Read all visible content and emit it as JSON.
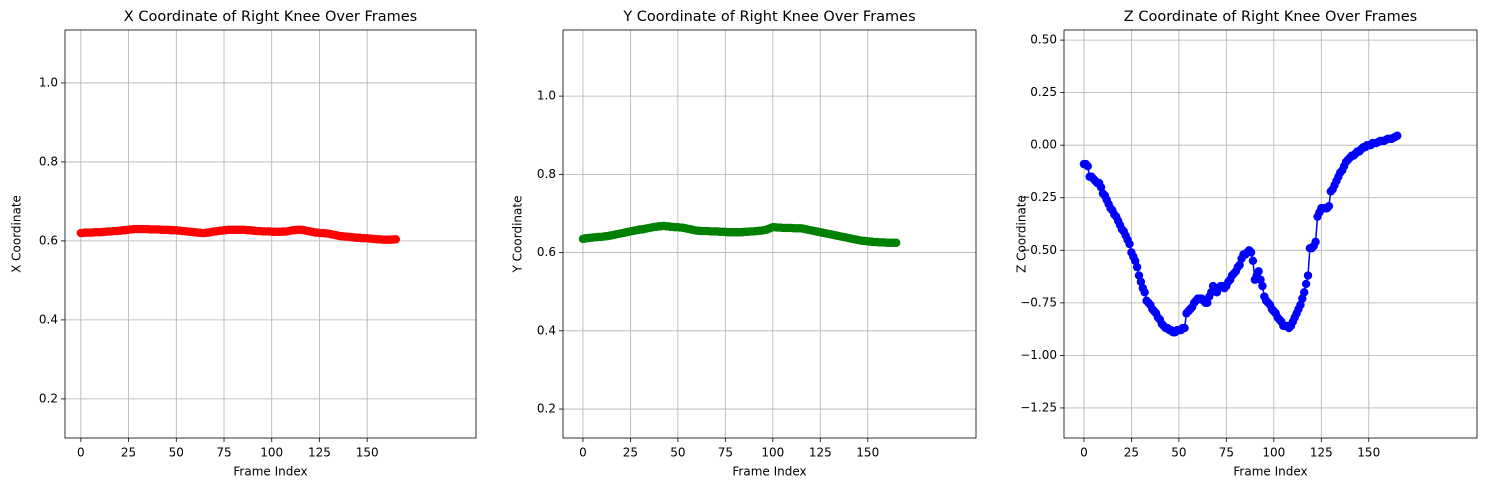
{
  "chart_data": [
    {
      "type": "line",
      "title": "X Coordinate of Right Knee Over Frames",
      "xlabel": "Frame Index",
      "ylabel": "X Coordinate",
      "color": "#ff0000",
      "marker": "o",
      "grid": true,
      "xlim": [
        -8.3,
        207
      ],
      "ylim": [
        0.101,
        1.134
      ],
      "xticks": [
        0,
        25,
        50,
        75,
        100,
        125,
        150
      ],
      "yticks": [
        0.2,
        0.4,
        0.6,
        0.8,
        {
          "value": 1.0,
          "label": "1.0"
        }
      ],
      "x": [
        0,
        1,
        2,
        3,
        4,
        5,
        6,
        7,
        8,
        9,
        10,
        11,
        12,
        13,
        14,
        15,
        16,
        17,
        18,
        19,
        20,
        21,
        22,
        23,
        24,
        25,
        26,
        27,
        28,
        29,
        30,
        31,
        32,
        33,
        34,
        35,
        36,
        37,
        38,
        39,
        40,
        41,
        42,
        43,
        44,
        45,
        46,
        47,
        48,
        49,
        50,
        51,
        52,
        53,
        54,
        55,
        56,
        57,
        58,
        59,
        60,
        61,
        62,
        63,
        64,
        65,
        66,
        67,
        68,
        69,
        70,
        71,
        72,
        73,
        74,
        75,
        76,
        77,
        78,
        79,
        80,
        81,
        82,
        83,
        84,
        85,
        86,
        87,
        88,
        89,
        90,
        91,
        92,
        93,
        94,
        95,
        96,
        97,
        98,
        99,
        100,
        101,
        102,
        103,
        104,
        105,
        106,
        107,
        108,
        109,
        110,
        111,
        112,
        113,
        114,
        115,
        116,
        117,
        118,
        119,
        120,
        121,
        122,
        123,
        124,
        125,
        126,
        127,
        128,
        129,
        130,
        131,
        132,
        133,
        134,
        135,
        136,
        137,
        138,
        139,
        140,
        141,
        142,
        143,
        144,
        145,
        146,
        147,
        148,
        149,
        150,
        151,
        152,
        153,
        154,
        155,
        156,
        157,
        158,
        159,
        160,
        161,
        162,
        163,
        164,
        165
      ],
      "values": [
        0.62,
        0.62,
        0.621,
        0.621,
        0.621,
        0.621,
        0.621,
        0.622,
        0.622,
        0.622,
        0.622,
        0.622,
        0.623,
        0.623,
        0.624,
        0.624,
        0.624,
        0.625,
        0.625,
        0.625,
        0.626,
        0.626,
        0.627,
        0.627,
        0.628,
        0.628,
        0.629,
        0.629,
        0.63,
        0.63,
        0.63,
        0.63,
        0.63,
        0.63,
        0.63,
        0.63,
        0.629,
        0.629,
        0.629,
        0.629,
        0.629,
        0.629,
        0.628,
        0.628,
        0.628,
        0.628,
        0.628,
        0.627,
        0.627,
        0.627,
        0.627,
        0.626,
        0.626,
        0.625,
        0.625,
        0.624,
        0.624,
        0.623,
        0.623,
        0.622,
        0.622,
        0.621,
        0.621,
        0.62,
        0.62,
        0.62,
        0.621,
        0.621,
        0.622,
        0.623,
        0.624,
        0.624,
        0.625,
        0.626,
        0.626,
        0.627,
        0.627,
        0.628,
        0.628,
        0.628,
        0.628,
        0.628,
        0.628,
        0.628,
        0.628,
        0.628,
        0.628,
        0.627,
        0.627,
        0.627,
        0.626,
        0.626,
        0.625,
        0.625,
        0.625,
        0.624,
        0.624,
        0.624,
        0.624,
        0.624,
        0.623,
        0.623,
        0.623,
        0.623,
        0.623,
        0.623,
        0.624,
        0.624,
        0.624,
        0.625,
        0.626,
        0.627,
        0.627,
        0.628,
        0.628,
        0.628,
        0.628,
        0.627,
        0.626,
        0.625,
        0.624,
        0.623,
        0.622,
        0.621,
        0.621,
        0.62,
        0.62,
        0.62,
        0.619,
        0.619,
        0.618,
        0.617,
        0.616,
        0.615,
        0.614,
        0.613,
        0.612,
        0.612,
        0.611,
        0.611,
        0.61,
        0.61,
        0.609,
        0.609,
        0.608,
        0.608,
        0.608,
        0.607,
        0.607,
        0.607,
        0.607,
        0.606,
        0.606,
        0.605,
        0.605,
        0.604,
        0.604,
        0.604,
        0.603,
        0.603,
        0.603,
        0.603,
        0.603,
        0.603,
        0.604,
        0.604
      ]
    },
    {
      "type": "line",
      "title": "Y Coordinate of Right Knee Over Frames",
      "xlabel": "Frame Index",
      "ylabel": "Y Coordinate",
      "color": "#008000",
      "marker": "o",
      "grid": true,
      "xlim": [
        -10.5,
        207
      ],
      "ylim": [
        0.126,
        1.169
      ],
      "xticks": [
        0,
        25,
        50,
        75,
        100,
        125,
        150
      ],
      "yticks": [
        0.2,
        0.4,
        0.6,
        0.8,
        {
          "value": 1.0,
          "label": "1.0"
        }
      ],
      "x": [
        0,
        1,
        2,
        3,
        4,
        5,
        6,
        7,
        8,
        9,
        10,
        11,
        12,
        13,
        14,
        15,
        16,
        17,
        18,
        19,
        20,
        21,
        22,
        23,
        24,
        25,
        26,
        27,
        28,
        29,
        30,
        31,
        32,
        33,
        34,
        35,
        36,
        37,
        38,
        39,
        40,
        41,
        42,
        43,
        44,
        45,
        46,
        47,
        48,
        49,
        50,
        51,
        52,
        53,
        54,
        55,
        56,
        57,
        58,
        59,
        60,
        61,
        62,
        63,
        64,
        65,
        66,
        67,
        68,
        69,
        70,
        71,
        72,
        73,
        74,
        75,
        76,
        77,
        78,
        79,
        80,
        81,
        82,
        83,
        84,
        85,
        86,
        87,
        88,
        89,
        90,
        91,
        92,
        93,
        94,
        95,
        96,
        97,
        98,
        99,
        100,
        101,
        102,
        103,
        104,
        105,
        106,
        107,
        108,
        109,
        110,
        111,
        112,
        113,
        114,
        115,
        116,
        117,
        118,
        119,
        120,
        121,
        122,
        123,
        124,
        125,
        126,
        127,
        128,
        129,
        130,
        131,
        132,
        133,
        134,
        135,
        136,
        137,
        138,
        139,
        140,
        141,
        142,
        143,
        144,
        145,
        146,
        147,
        148,
        149,
        150,
        151,
        152,
        153,
        154,
        155,
        156,
        157,
        158,
        159,
        160,
        161,
        162,
        163,
        164,
        165
      ],
      "values": [
        0.635,
        0.636,
        0.637,
        0.637,
        0.638,
        0.638,
        0.639,
        0.639,
        0.64,
        0.64,
        0.64,
        0.641,
        0.642,
        0.642,
        0.643,
        0.644,
        0.645,
        0.646,
        0.647,
        0.648,
        0.649,
        0.65,
        0.651,
        0.652,
        0.653,
        0.654,
        0.655,
        0.656,
        0.657,
        0.658,
        0.659,
        0.659,
        0.66,
        0.661,
        0.662,
        0.663,
        0.664,
        0.665,
        0.666,
        0.666,
        0.667,
        0.667,
        0.668,
        0.668,
        0.667,
        0.667,
        0.666,
        0.666,
        0.665,
        0.665,
        0.665,
        0.664,
        0.664,
        0.663,
        0.662,
        0.661,
        0.66,
        0.659,
        0.658,
        0.657,
        0.656,
        0.656,
        0.655,
        0.655,
        0.655,
        0.655,
        0.655,
        0.654,
        0.654,
        0.654,
        0.654,
        0.654,
        0.653,
        0.653,
        0.653,
        0.653,
        0.652,
        0.652,
        0.652,
        0.652,
        0.652,
        0.652,
        0.652,
        0.652,
        0.652,
        0.653,
        0.653,
        0.653,
        0.654,
        0.654,
        0.654,
        0.655,
        0.655,
        0.656,
        0.656,
        0.657,
        0.658,
        0.659,
        0.661,
        0.663,
        0.665,
        0.665,
        0.664,
        0.664,
        0.664,
        0.663,
        0.663,
        0.663,
        0.663,
        0.663,
        0.663,
        0.662,
        0.662,
        0.662,
        0.662,
        0.662,
        0.661,
        0.66,
        0.659,
        0.658,
        0.657,
        0.656,
        0.655,
        0.654,
        0.653,
        0.652,
        0.651,
        0.65,
        0.649,
        0.648,
        0.647,
        0.646,
        0.645,
        0.644,
        0.643,
        0.642,
        0.641,
        0.64,
        0.639,
        0.638,
        0.637,
        0.636,
        0.635,
        0.634,
        0.633,
        0.632,
        0.631,
        0.63,
        0.63,
        0.629,
        0.629,
        0.628,
        0.628,
        0.627,
        0.627,
        0.627,
        0.626,
        0.626,
        0.626,
        0.626,
        0.625,
        0.625,
        0.625,
        0.625,
        0.625,
        0.625
      ]
    },
    {
      "type": "line",
      "title": "Z Coordinate of Right Knee Over Frames",
      "xlabel": "Frame Index",
      "ylabel": "Z Coordinate",
      "color": "#0000ff",
      "marker": "o",
      "grid": true,
      "xlim": [
        -10.5,
        207
      ],
      "ylim": [
        -1.393,
        0.548
      ],
      "xticks": [
        0,
        25,
        50,
        75,
        100,
        125,
        150
      ],
      "yticks": [
        {
          "value": -1.25,
          "label": "−1.25"
        },
        {
          "value": -1.0,
          "label": "−1.00"
        },
        {
          "value": -0.75,
          "label": "−0.75"
        },
        {
          "value": -0.5,
          "label": "−0.50"
        },
        {
          "value": -0.25,
          "label": "−0.25"
        },
        {
          "value": 0.0,
          "label": "0.00"
        },
        {
          "value": 0.25,
          "label": "0.25"
        },
        {
          "value": 0.5,
          "label": "0.50"
        }
      ],
      "x": [
        0,
        1,
        2,
        3,
        4,
        5,
        6,
        7,
        8,
        9,
        10,
        11,
        12,
        13,
        14,
        15,
        16,
        17,
        18,
        19,
        20,
        21,
        22,
        23,
        24,
        25,
        26,
        27,
        28,
        29,
        30,
        31,
        32,
        33,
        34,
        35,
        36,
        37,
        38,
        39,
        40,
        41,
        42,
        43,
        44,
        45,
        46,
        47,
        48,
        49,
        50,
        51,
        52,
        53,
        54,
        55,
        56,
        57,
        58,
        59,
        60,
        61,
        62,
        63,
        64,
        65,
        66,
        67,
        68,
        69,
        70,
        71,
        72,
        73,
        74,
        75,
        76,
        77,
        78,
        79,
        80,
        81,
        82,
        83,
        84,
        85,
        86,
        87,
        88,
        89,
        90,
        91,
        92,
        93,
        94,
        95,
        96,
        97,
        98,
        99,
        100,
        101,
        102,
        103,
        104,
        105,
        106,
        107,
        108,
        109,
        110,
        111,
        112,
        113,
        114,
        115,
        116,
        117,
        118,
        119,
        120,
        121,
        122,
        123,
        124,
        125,
        126,
        127,
        128,
        129,
        130,
        131,
        132,
        133,
        134,
        135,
        136,
        137,
        138,
        139,
        140,
        141,
        142,
        143,
        144,
        145,
        146,
        147,
        148,
        149,
        150,
        151,
        152,
        153,
        154,
        155,
        156,
        157,
        158,
        159,
        160,
        161,
        162,
        163,
        164,
        165
      ],
      "values": [
        -0.09,
        -0.09,
        -0.1,
        -0.15,
        -0.15,
        -0.16,
        -0.17,
        -0.18,
        -0.18,
        -0.2,
        -0.23,
        -0.24,
        -0.26,
        -0.28,
        -0.3,
        -0.31,
        -0.33,
        -0.34,
        -0.36,
        -0.38,
        -0.4,
        -0.41,
        -0.43,
        -0.45,
        -0.47,
        -0.51,
        -0.53,
        -0.55,
        -0.58,
        -0.62,
        -0.65,
        -0.68,
        -0.7,
        -0.74,
        -0.75,
        -0.76,
        -0.78,
        -0.79,
        -0.8,
        -0.82,
        -0.83,
        -0.85,
        -0.86,
        -0.87,
        -0.87,
        -0.88,
        -0.88,
        -0.89,
        -0.89,
        -0.88,
        -0.88,
        -0.88,
        -0.87,
        -0.87,
        -0.8,
        -0.79,
        -0.78,
        -0.77,
        -0.75,
        -0.74,
        -0.73,
        -0.73,
        -0.73,
        -0.74,
        -0.75,
        -0.75,
        -0.72,
        -0.7,
        -0.67,
        -0.68,
        -0.7,
        -0.68,
        -0.67,
        -0.67,
        -0.68,
        -0.67,
        -0.65,
        -0.64,
        -0.62,
        -0.61,
        -0.6,
        -0.58,
        -0.57,
        -0.54,
        -0.52,
        -0.52,
        -0.51,
        -0.5,
        -0.51,
        -0.55,
        -0.64,
        -0.62,
        -0.6,
        -0.64,
        -0.67,
        -0.72,
        -0.74,
        -0.75,
        -0.76,
        -0.78,
        -0.79,
        -0.8,
        -0.82,
        -0.83,
        -0.84,
        -0.86,
        -0.86,
        -0.86,
        -0.87,
        -0.86,
        -0.84,
        -0.82,
        -0.8,
        -0.78,
        -0.76,
        -0.73,
        -0.7,
        -0.66,
        -0.62,
        -0.49,
        -0.49,
        -0.48,
        -0.46,
        -0.34,
        -0.32,
        -0.3,
        -0.3,
        -0.3,
        -0.3,
        -0.29,
        -0.22,
        -0.21,
        -0.19,
        -0.17,
        -0.15,
        -0.13,
        -0.12,
        -0.1,
        -0.08,
        -0.07,
        -0.06,
        -0.05,
        -0.05,
        -0.04,
        -0.03,
        -0.03,
        -0.02,
        -0.01,
        -0.01,
        0.0,
        0.0,
        0.0,
        0.01,
        0.01,
        0.01,
        0.015,
        0.02,
        0.02,
        0.02,
        0.025,
        0.03,
        0.03,
        0.03,
        0.035,
        0.04,
        0.045
      ]
    }
  ]
}
